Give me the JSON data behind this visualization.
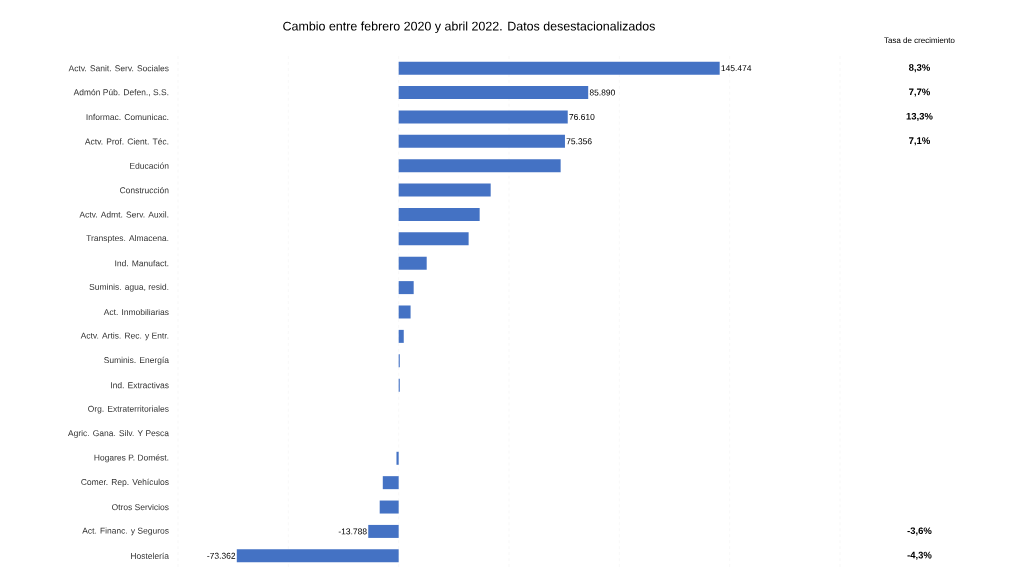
{
  "chart_data": {
    "type": "bar",
    "orientation": "horizontal",
    "title": "Cambio entre febrero 2020 y abril 2022. Datos desestacionalizados",
    "categories": [
      "Actv. Sanit. Serv. Sociales",
      "Admón Púb. Defen., S.S.",
      "Informac. Comunicac.",
      "Actv. Prof. Cient. Téc.",
      "Educación",
      "Construcción",
      "Actv. Admt. Serv. Auxil.",
      "Transptes. Almacena.",
      "Ind. Manufact.",
      "Suminis. agua, resid.",
      "Act. Inmobiliarias",
      "Actv. Artis. Rec. y Entr.",
      "Suminis. Energía",
      "Ind. Extractivas",
      "Org. Extraterritoriales",
      "Agric. Gana. Silv. Y Pesca",
      "Hogares P. Domést.",
      "Comer. Rep. Vehículos",
      "Otros Servicios",
      "Act. Financ. y Seguros",
      "Hostelería"
    ],
    "values": [
      145474,
      85890,
      76610,
      75356,
      73400,
      41700,
      36700,
      31700,
      12700,
      6800,
      5400,
      2300,
      500,
      500,
      0,
      0,
      -1000,
      -7200,
      -8600,
      -13788,
      -73362
    ],
    "value_labels": [
      "145.474",
      "85.890",
      "76.610",
      "75.356",
      null,
      null,
      null,
      null,
      null,
      null,
      null,
      null,
      null,
      null,
      null,
      null,
      null,
      null,
      null,
      "-13.788",
      "-73.362"
    ],
    "color": "#4472c4",
    "xlim": [
      -100000,
      200000
    ],
    "xticks": [
      {
        "value": -100000,
        "label": null
      },
      {
        "value": -50000,
        "label": null
      },
      {
        "value": 0,
        "label": null
      },
      {
        "value": 50000,
        "label": null
      },
      {
        "value": 100000,
        "label": null
      },
      {
        "value": 150000,
        "label": null
      },
      {
        "value": 200000,
        "label": null
      }
    ],
    "grid": "x",
    "tick_labels": "y",
    "annotations": [
      "Tasa de crecimiento",
      "8,3%",
      "7,7%",
      "13,3%",
      "7,1%",
      "-3,6%",
      "-4,3%"
    ]
  }
}
